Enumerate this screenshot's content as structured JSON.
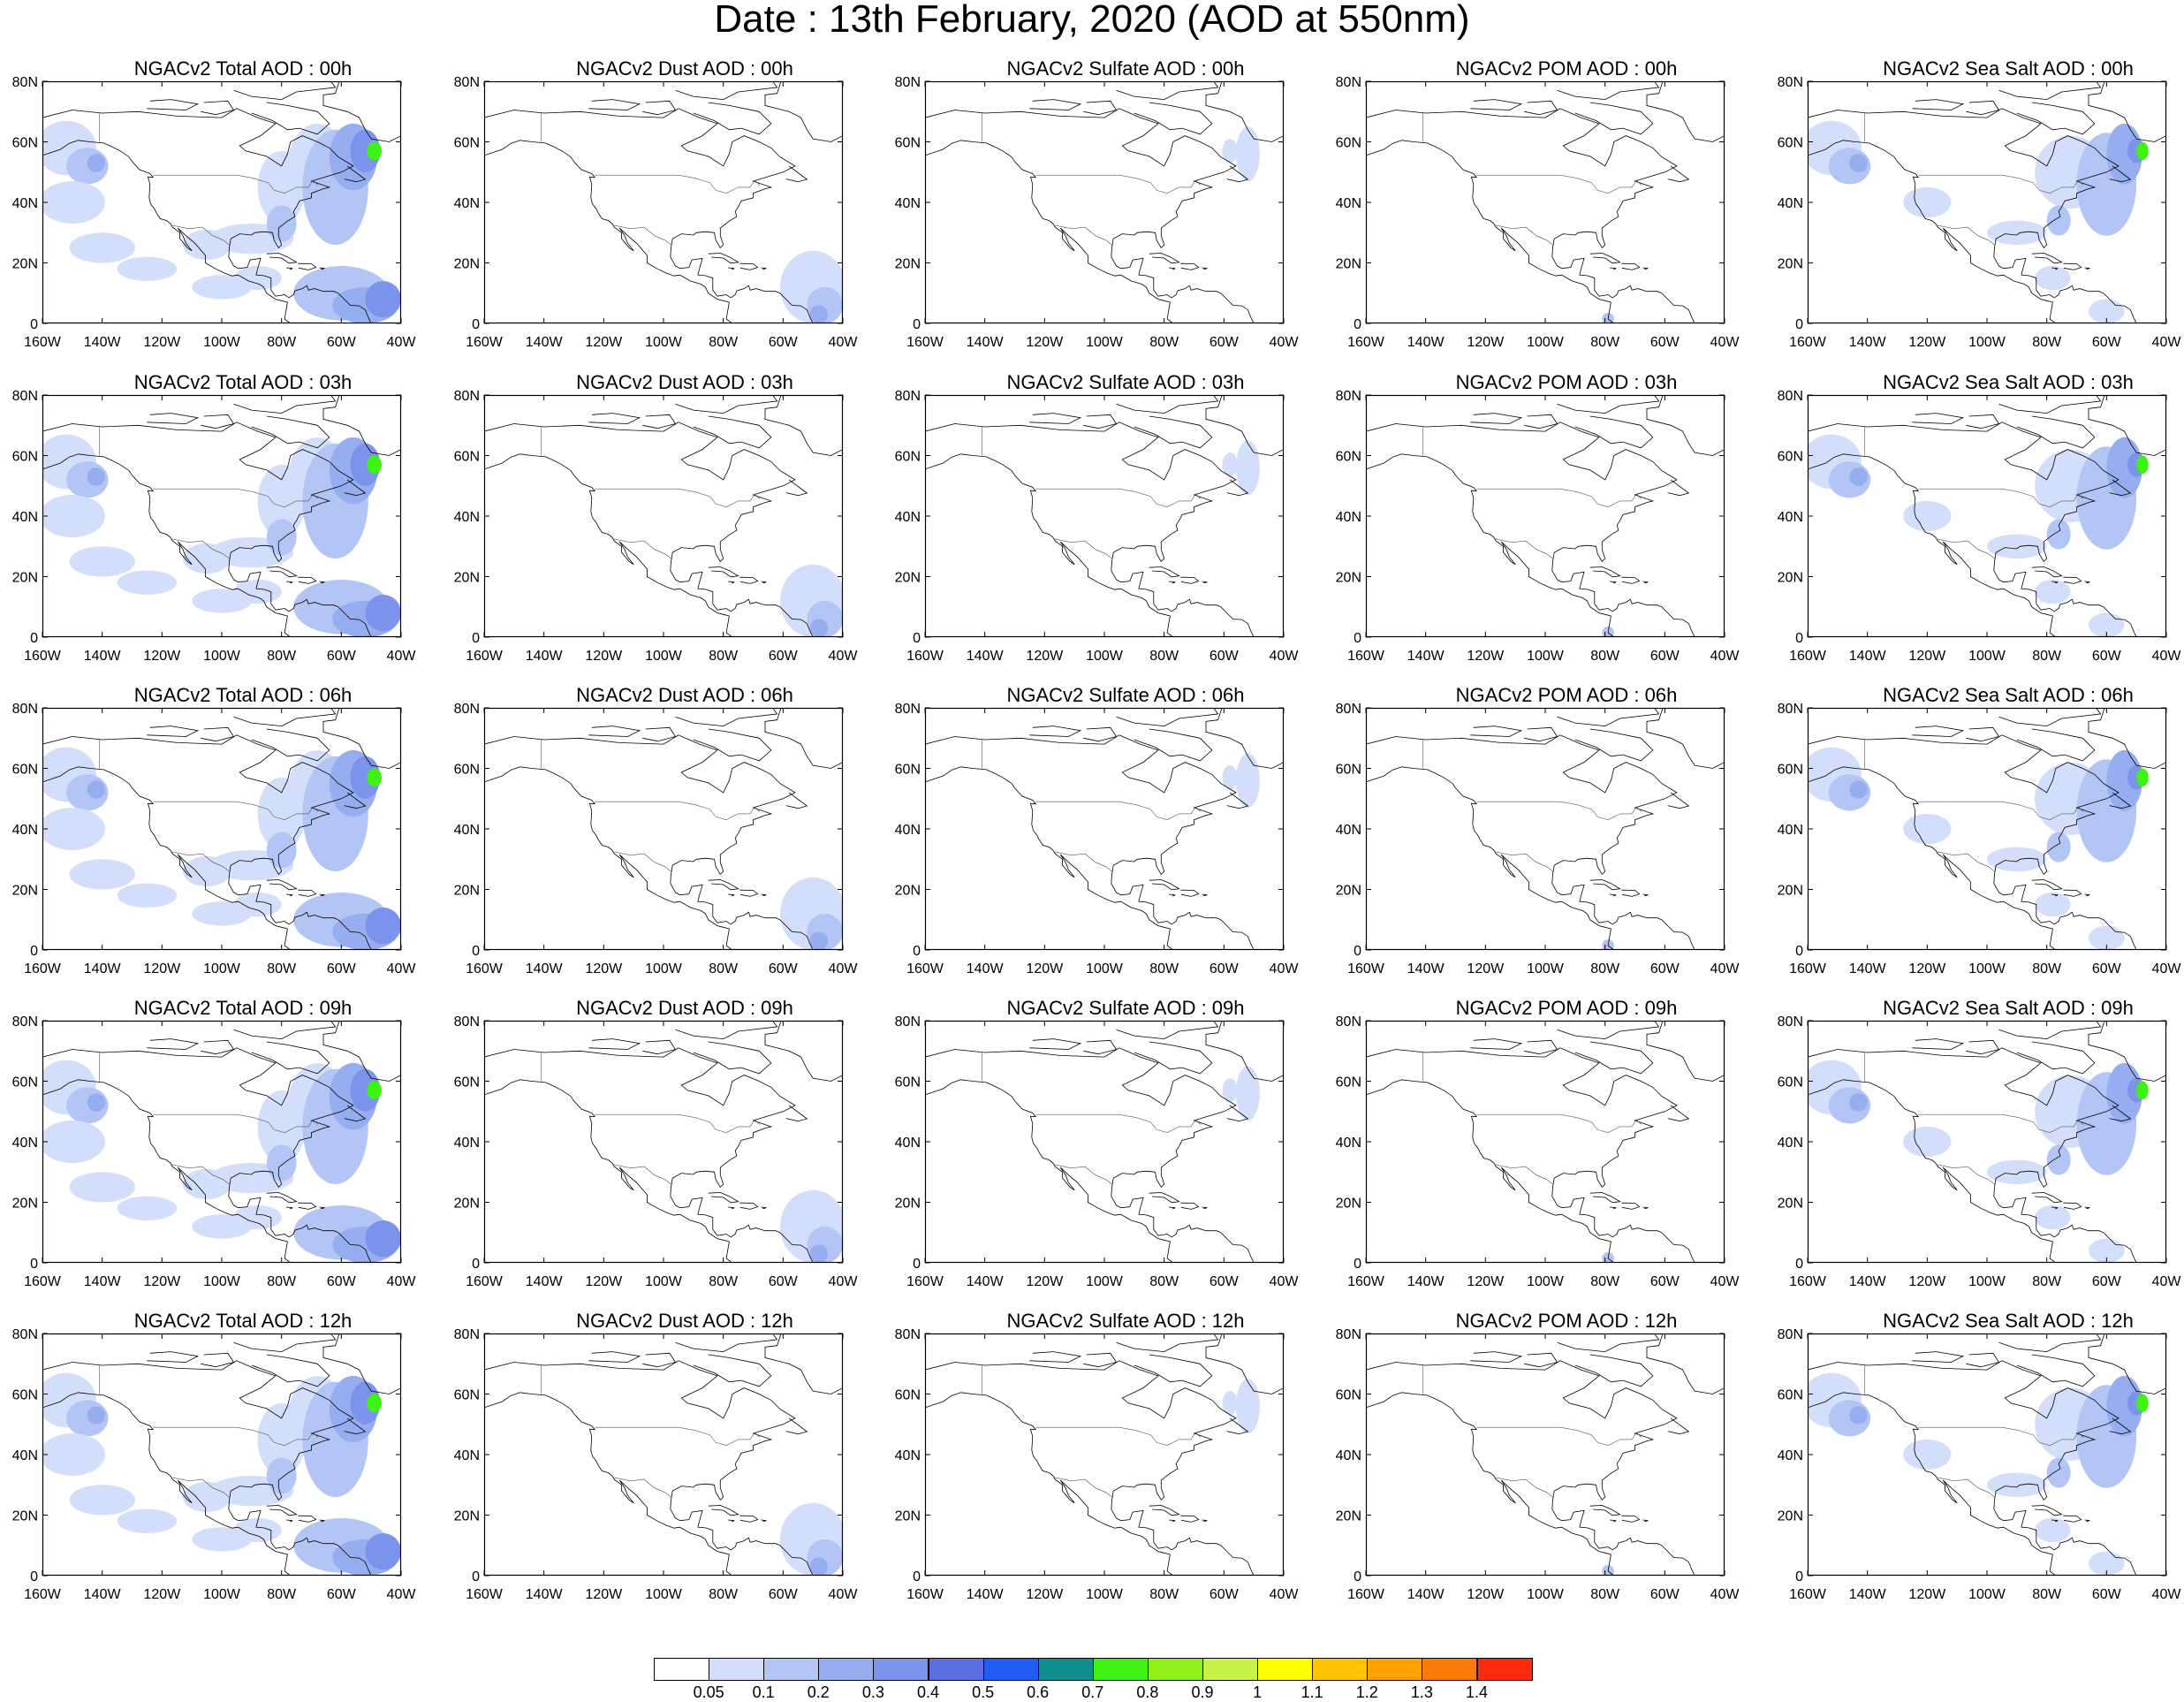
{
  "title": "Date : 13th February, 2020 (AOD at 550nm)",
  "axes": {
    "lat_ticks": [
      "80N",
      "60N",
      "40N",
      "20N",
      "0"
    ],
    "lon_ticks": [
      "160W",
      "140W",
      "120W",
      "100W",
      "80W",
      "60W",
      "40W"
    ]
  },
  "panel_titles": [
    [
      "NGACv2 Total AOD : 00h",
      "NGACv2 Dust AOD : 00h",
      "NGACv2 Sulfate AOD : 00h",
      "NGACv2 POM AOD : 00h",
      "NGACv2 Sea Salt AOD : 00h"
    ],
    [
      "NGACv2 Total AOD : 03h",
      "NGACv2 Dust AOD : 03h",
      "NGACv2 Sulfate AOD : 03h",
      "NGACv2 POM AOD : 03h",
      "NGACv2 Sea Salt AOD : 03h"
    ],
    [
      "NGACv2 Total AOD : 06h",
      "NGACv2 Dust AOD : 06h",
      "NGACv2 Sulfate AOD : 06h",
      "NGACv2 POM AOD : 06h",
      "NGACv2 Sea Salt AOD : 06h"
    ],
    [
      "NGACv2 Total AOD : 09h",
      "NGACv2 Dust AOD : 09h",
      "NGACv2 Sulfate AOD : 09h",
      "NGACv2 POM AOD : 09h",
      "NGACv2 Sea Salt  AOD : 09h"
    ],
    [
      "NGACv2 Total AOD  : 12h",
      "NGACv2 Dust AOD : 12h",
      "NGACv2 Sulfate AOD : 12h",
      "NGACv2 POM  AOD : 12h",
      "NGACv2 Sea Salt  AOD : 12h"
    ]
  ],
  "colorbar": {
    "labels": [
      "0.05",
      "0.1",
      "0.2",
      "0.3",
      "0.4",
      "0.5",
      "0.6",
      "0.7",
      "0.8",
      "0.9",
      "1",
      "1.1",
      "1.2",
      "1.3",
      "1.4"
    ],
    "colors": [
      "#ffffff",
      "#d3defa",
      "#b3c5f5",
      "#96adf0",
      "#7b93ea",
      "#5b6fe3",
      "#1f5ef2",
      "#0f8f8f",
      "#3ef212",
      "#8ff216",
      "#c8f248",
      "#ffff00",
      "#ffc300",
      "#ffa200",
      "#ff7a00",
      "#ff2a0a"
    ]
  }
}
